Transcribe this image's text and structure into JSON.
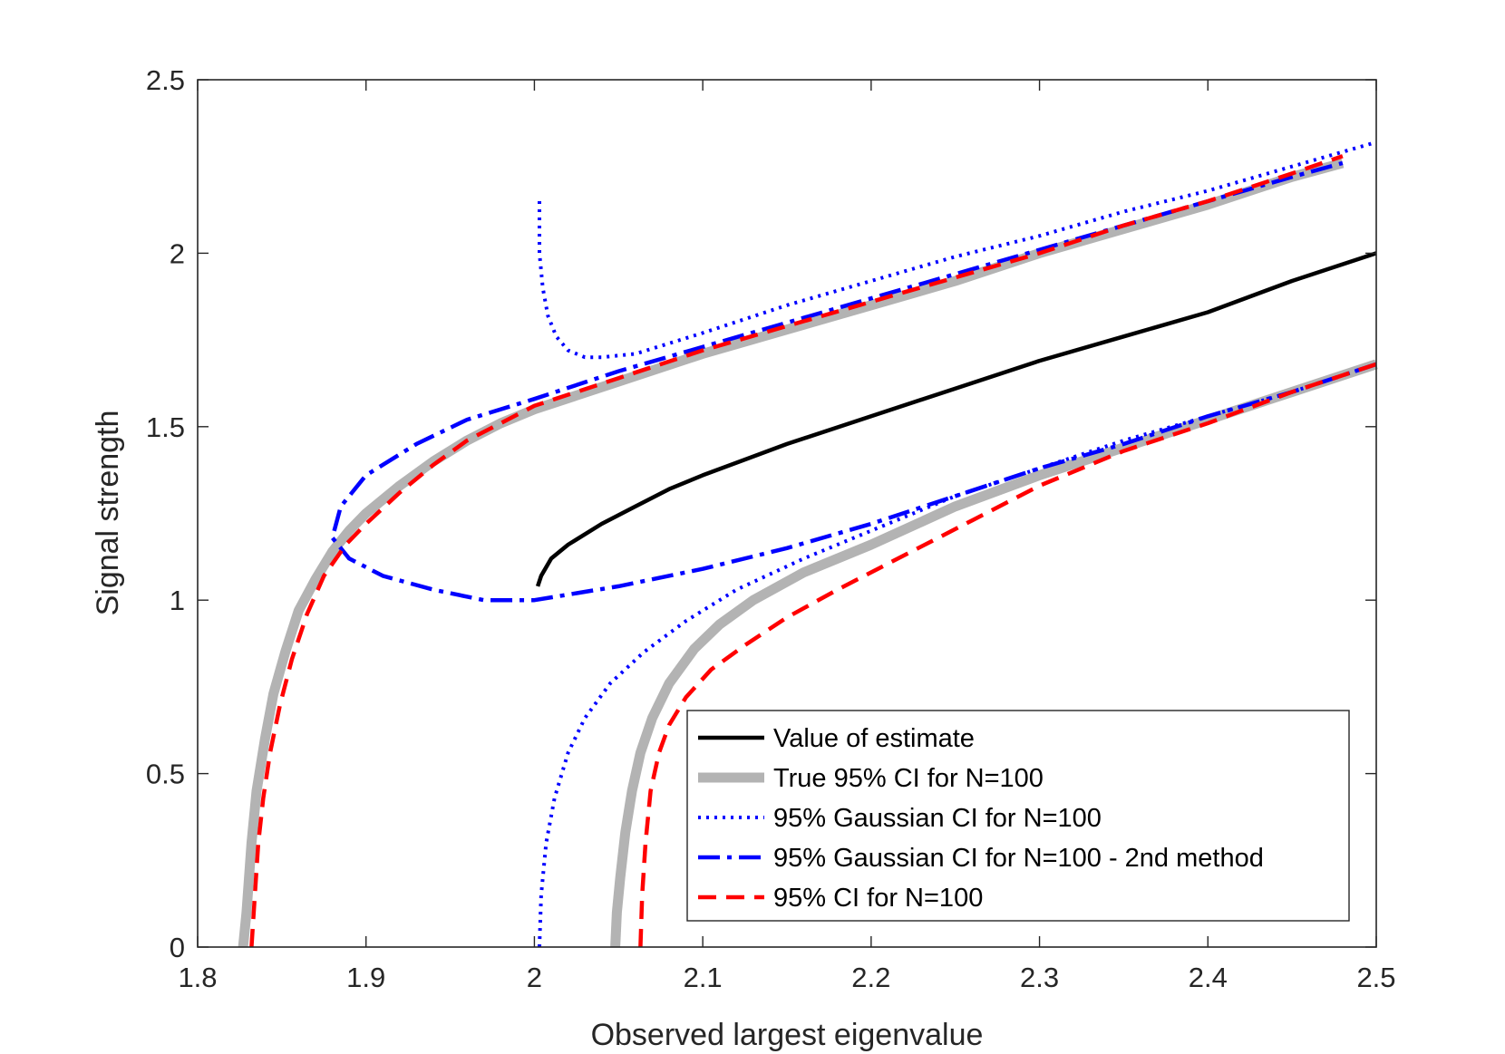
{
  "chart_data": {
    "type": "line",
    "title": "",
    "xlabel": "Observed largest eigenvalue",
    "ylabel": "Signal strength",
    "xlim": [
      1.8,
      2.5
    ],
    "ylim": [
      0,
      2.5
    ],
    "xticks": [
      1.8,
      1.9,
      2.0,
      2.1,
      2.2,
      2.3,
      2.4,
      2.5
    ],
    "xtick_labels": [
      "1.8",
      "1.9",
      "2",
      "2.1",
      "2.2",
      "2.3",
      "2.4",
      "2.5"
    ],
    "yticks": [
      0,
      0.5,
      1.0,
      1.5,
      2.0,
      2.5
    ],
    "ytick_labels": [
      "0",
      "0.5",
      "1",
      "1.5",
      "2",
      "2.5"
    ],
    "grid": false,
    "legend_position": "bottom-right",
    "series": [
      {
        "name": "True 95% CI for N=100",
        "style": "solid-thick",
        "color": "#b3b3b3",
        "segments": [
          [
            [
              1.827,
              0
            ],
            [
              1.829,
              0.1
            ],
            [
              1.832,
              0.3
            ],
            [
              1.835,
              0.45
            ],
            [
              1.84,
              0.6
            ],
            [
              1.845,
              0.73
            ],
            [
              1.852,
              0.85
            ],
            [
              1.86,
              0.97
            ],
            [
              1.87,
              1.06
            ],
            [
              1.88,
              1.14
            ],
            [
              1.89,
              1.2
            ],
            [
              1.9,
              1.25
            ],
            [
              1.92,
              1.33
            ],
            [
              1.94,
              1.4
            ],
            [
              1.96,
              1.46
            ],
            [
              1.98,
              1.51
            ],
            [
              2.0,
              1.55
            ],
            [
              2.05,
              1.63
            ],
            [
              2.1,
              1.71
            ],
            [
              2.15,
              1.78
            ],
            [
              2.2,
              1.85
            ],
            [
              2.25,
              1.92
            ],
            [
              2.3,
              2.0
            ],
            [
              2.35,
              2.07
            ],
            [
              2.4,
              2.14
            ],
            [
              2.45,
              2.22
            ],
            [
              2.48,
              2.26
            ]
          ],
          [
            [
              2.048,
              0
            ],
            [
              2.049,
              0.1
            ],
            [
              2.051,
              0.2
            ],
            [
              2.054,
              0.33
            ],
            [
              2.058,
              0.45
            ],
            [
              2.063,
              0.56
            ],
            [
              2.07,
              0.66
            ],
            [
              2.08,
              0.76
            ],
            [
              2.095,
              0.86
            ],
            [
              2.11,
              0.93
            ],
            [
              2.13,
              1.0
            ],
            [
              2.16,
              1.08
            ],
            [
              2.2,
              1.16
            ],
            [
              2.25,
              1.27
            ],
            [
              2.3,
              1.36
            ],
            [
              2.35,
              1.44
            ],
            [
              2.4,
              1.52
            ],
            [
              2.45,
              1.6
            ],
            [
              2.5,
              1.68
            ]
          ]
        ]
      },
      {
        "name": "Value of estimate",
        "style": "solid",
        "color": "#000000",
        "segments": [
          [
            [
              2.002,
              1.04
            ],
            [
              2.004,
              1.07
            ],
            [
              2.01,
              1.12
            ],
            [
              2.02,
              1.16
            ],
            [
              2.04,
              1.22
            ],
            [
              2.06,
              1.27
            ],
            [
              2.08,
              1.32
            ],
            [
              2.1,
              1.36
            ],
            [
              2.15,
              1.45
            ],
            [
              2.2,
              1.53
            ],
            [
              2.25,
              1.61
            ],
            [
              2.3,
              1.69
            ],
            [
              2.35,
              1.76
            ],
            [
              2.4,
              1.83
            ],
            [
              2.45,
              1.92
            ],
            [
              2.5,
              2.0
            ]
          ]
        ]
      },
      {
        "name": "95% Gaussian CI for N=100",
        "style": "dotted",
        "color": "#0000ff",
        "segments": [
          [
            [
              2.003,
              2.15
            ],
            [
              2.003,
              2.0
            ],
            [
              2.005,
              1.9
            ],
            [
              2.008,
              1.82
            ],
            [
              2.013,
              1.76
            ],
            [
              2.02,
              1.72
            ],
            [
              2.03,
              1.7
            ],
            [
              2.04,
              1.7
            ],
            [
              2.06,
              1.71
            ],
            [
              2.08,
              1.74
            ],
            [
              2.1,
              1.77
            ],
            [
              2.15,
              1.85
            ],
            [
              2.2,
              1.92
            ],
            [
              2.25,
              1.99
            ],
            [
              2.3,
              2.05
            ],
            [
              2.35,
              2.12
            ],
            [
              2.4,
              2.18
            ],
            [
              2.45,
              2.25
            ],
            [
              2.5,
              2.32
            ]
          ],
          [
            [
              2.003,
              0
            ],
            [
              2.004,
              0.15
            ],
            [
              2.007,
              0.3
            ],
            [
              2.012,
              0.43
            ],
            [
              2.02,
              0.56
            ],
            [
              2.03,
              0.66
            ],
            [
              2.045,
              0.76
            ],
            [
              2.065,
              0.85
            ],
            [
              2.09,
              0.94
            ],
            [
              2.12,
              1.03
            ],
            [
              2.16,
              1.12
            ],
            [
              2.2,
              1.2
            ],
            [
              2.25,
              1.3
            ],
            [
              2.3,
              1.38
            ],
            [
              2.35,
              1.46
            ],
            [
              2.4,
              1.53
            ],
            [
              2.45,
              1.6
            ],
            [
              2.5,
              1.68
            ]
          ]
        ]
      },
      {
        "name": "95% Gaussian CI for N=100 - 2nd method",
        "style": "dashdot",
        "color": "#0000ff",
        "segments": [
          [
            [
              2.5,
              1.68
            ],
            [
              2.45,
              1.6
            ],
            [
              2.4,
              1.53
            ],
            [
              2.35,
              1.45
            ],
            [
              2.3,
              1.38
            ],
            [
              2.25,
              1.3
            ],
            [
              2.2,
              1.22
            ],
            [
              2.15,
              1.15
            ],
            [
              2.1,
              1.09
            ],
            [
              2.05,
              1.04
            ],
            [
              2.0,
              1.0
            ],
            [
              1.97,
              1.0
            ],
            [
              1.94,
              1.03
            ],
            [
              1.91,
              1.07
            ],
            [
              1.89,
              1.12
            ],
            [
              1.88,
              1.18
            ],
            [
              1.885,
              1.27
            ],
            [
              1.9,
              1.36
            ],
            [
              1.93,
              1.45
            ],
            [
              1.96,
              1.52
            ],
            [
              2.0,
              1.58
            ],
            [
              2.05,
              1.66
            ],
            [
              2.1,
              1.73
            ],
            [
              2.15,
              1.8
            ],
            [
              2.2,
              1.87
            ],
            [
              2.25,
              1.94
            ],
            [
              2.3,
              2.01
            ],
            [
              2.35,
              2.08
            ],
            [
              2.4,
              2.15
            ],
            [
              2.45,
              2.22
            ],
            [
              2.48,
              2.26
            ]
          ]
        ]
      },
      {
        "name": "95% CI for N=100",
        "style": "dashed",
        "color": "#ff0000",
        "segments": [
          [
            [
              1.832,
              0
            ],
            [
              1.834,
              0.15
            ],
            [
              1.836,
              0.3
            ],
            [
              1.839,
              0.43
            ],
            [
              1.843,
              0.56
            ],
            [
              1.849,
              0.7
            ],
            [
              1.856,
              0.83
            ],
            [
              1.865,
              0.96
            ],
            [
              1.875,
              1.07
            ],
            [
              1.888,
              1.16
            ],
            [
              1.9,
              1.22
            ],
            [
              1.92,
              1.31
            ],
            [
              1.94,
              1.39
            ],
            [
              1.96,
              1.46
            ],
            [
              1.98,
              1.51
            ],
            [
              2.0,
              1.56
            ],
            [
              2.05,
              1.64
            ],
            [
              2.1,
              1.72
            ],
            [
              2.15,
              1.79
            ],
            [
              2.2,
              1.86
            ],
            [
              2.25,
              1.93
            ],
            [
              2.3,
              2.0
            ],
            [
              2.35,
              2.08
            ],
            [
              2.4,
              2.15
            ],
            [
              2.45,
              2.23
            ],
            [
              2.48,
              2.28
            ]
          ],
          [
            [
              2.063,
              0
            ],
            [
              2.064,
              0.15
            ],
            [
              2.066,
              0.3
            ],
            [
              2.069,
              0.45
            ],
            [
              2.074,
              0.56
            ],
            [
              2.08,
              0.64
            ],
            [
              2.09,
              0.72
            ],
            [
              2.105,
              0.8
            ],
            [
              2.125,
              0.87
            ],
            [
              2.15,
              0.95
            ],
            [
              2.18,
              1.03
            ],
            [
              2.22,
              1.13
            ],
            [
              2.26,
              1.23
            ],
            [
              2.3,
              1.33
            ],
            [
              2.35,
              1.43
            ],
            [
              2.4,
              1.51
            ],
            [
              2.45,
              1.6
            ],
            [
              2.5,
              1.68
            ]
          ]
        ]
      }
    ],
    "legend_order": [
      "Value of estimate",
      "True 95% CI for N=100",
      "95% Gaussian CI for N=100",
      "95% Gaussian CI for N=100 - 2nd method",
      "95% CI for N=100"
    ]
  }
}
